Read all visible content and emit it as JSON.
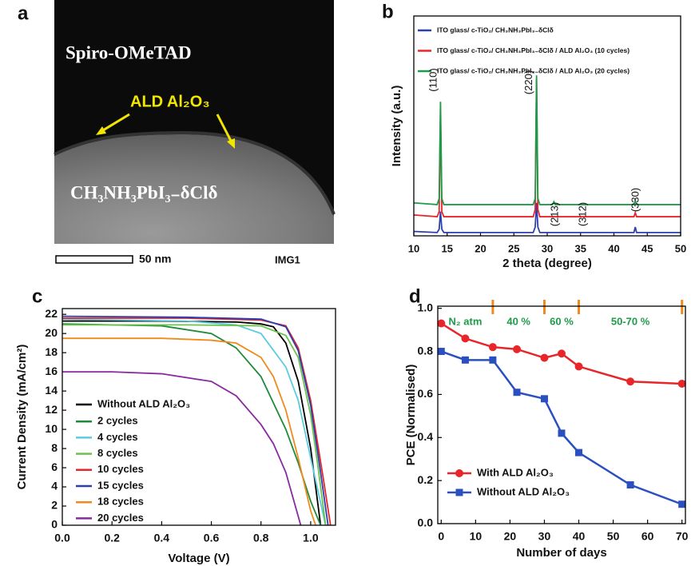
{
  "chart_data": [
    {
      "type": "image",
      "panel_label": "a",
      "top_label": "Spiro-OMeTAD",
      "arrow_label": "ALD Al₂O₃",
      "bottom_label": "CH₃NH₃PbI₃₋δClδ",
      "scale_bar": "50 nm",
      "image_id": "IMG1"
    },
    {
      "type": "line",
      "panel_label": "b",
      "xlabel": "2 theta (degree)",
      "ylabel": "Intensity (a.u.)",
      "xlim": [
        10,
        50
      ],
      "ylim": [
        0,
        100
      ],
      "xticks": [
        10,
        15,
        20,
        25,
        30,
        35,
        40,
        45,
        50
      ],
      "x": [
        10,
        13.5,
        13.8,
        14.0,
        14.2,
        14.5,
        20,
        27.9,
        28.2,
        28.4,
        28.6,
        28.9,
        30.8,
        31.0,
        31.2,
        35,
        43.0,
        43.2,
        43.4,
        50
      ],
      "series": [
        {
          "name": "ITO glass/ c-TiO₂/ CH₃NH₃PbI₃₋δClδ",
          "color": "#2a3fb0",
          "values": [
            2,
            1.5,
            3,
            11,
            3,
            1.5,
            1.5,
            1.5,
            4,
            15,
            4,
            1.5,
            1.5,
            1.5,
            1.5,
            1.5,
            1.5,
            4,
            1.5,
            1.5
          ]
        },
        {
          "name": "ITO glass/ c-TiO₂/ CH₃NH₃PbI₃₋δClδ / ALD Al₂O₃ (10 cycles)",
          "color": "#e8262a",
          "values": [
            9.5,
            8.7,
            11,
            56,
            11,
            8.7,
            8.7,
            8.7,
            12,
            71,
            12,
            8.7,
            8.7,
            8.7,
            8.7,
            8.7,
            8.7,
            10.5,
            8.7,
            8.7
          ]
        },
        {
          "name": "ITO glass/ c-TiO₂/ CH₃NH₃PbI₃₋δClδ / ALD Al₂O₃ (20 cycles)",
          "color": "#1f9a4a",
          "values": [
            15,
            14.2,
            17,
            61,
            17,
            14.2,
            14.2,
            14.2,
            17,
            73,
            17,
            14.2,
            14.2,
            15.5,
            14.2,
            14.2,
            14.2,
            16,
            14.2,
            14.2
          ]
        }
      ],
      "annotations": [
        {
          "text": "(110)",
          "x": 13.0
        },
        {
          "text": "(220)",
          "x": 27.3
        },
        {
          "text": "(213)",
          "x": 31.2
        },
        {
          "text": "(312)",
          "x": 35.4
        },
        {
          "text": "(330)",
          "x": 43.3
        }
      ]
    },
    {
      "type": "line",
      "panel_label": "c",
      "xlabel": "Voltage (V)",
      "ylabel": "Current Density (mA/cm²)",
      "xlim": [
        0,
        1.1
      ],
      "ylim": [
        0,
        22.6
      ],
      "xticks": [
        {
          "value": 0,
          "label": "0.0"
        },
        0.2,
        0.4,
        0.6,
        0.8,
        {
          "value": 1,
          "label": "1.0"
        }
      ],
      "yticks": [
        0,
        2,
        4,
        6,
        8,
        10,
        12,
        14,
        16,
        18,
        20,
        22
      ],
      "series": [
        {
          "name": "Without ALD Al₂O₃",
          "color": "#000000",
          "x": [
            0,
            0.4,
            0.7,
            0.8,
            0.85,
            0.9,
            0.95,
            1.0,
            1.04
          ],
          "values": [
            21.3,
            21.3,
            21.2,
            21.0,
            20.7,
            19,
            15,
            8,
            0
          ]
        },
        {
          "name": "2 cycles",
          "color": "#1f8a3a",
          "x": [
            0,
            0.4,
            0.6,
            0.7,
            0.8,
            0.9,
            0.95,
            1.0,
            1.04
          ],
          "values": [
            21.0,
            20.8,
            20.0,
            18.5,
            15.5,
            10,
            6.5,
            2.5,
            0
          ]
        },
        {
          "name": "4 cycles",
          "color": "#5bcbe0",
          "x": [
            0,
            0.5,
            0.7,
            0.8,
            0.9,
            0.95,
            1.0,
            1.06
          ],
          "values": [
            21.5,
            21.3,
            20.9,
            20,
            16.5,
            13,
            7,
            0
          ]
        },
        {
          "name": "8 cycles",
          "color": "#6cc24a",
          "x": [
            0,
            0.5,
            0.8,
            0.9,
            0.95,
            1.0,
            1.03,
            1.06
          ],
          "values": [
            20.9,
            20.9,
            20.8,
            19.8,
            17.5,
            11.5,
            6,
            0
          ]
        },
        {
          "name": "10 cycles",
          "color": "#e8262a",
          "x": [
            0,
            0.5,
            0.8,
            0.9,
            0.95,
            1.0,
            1.05,
            1.08
          ],
          "values": [
            21.6,
            21.6,
            21.4,
            20.8,
            18.5,
            13,
            5,
            0
          ]
        },
        {
          "name": "15 cycles",
          "color": "#2a3fb0",
          "x": [
            0,
            0.5,
            0.8,
            0.9,
            0.95,
            1.0,
            1.04,
            1.07
          ],
          "values": [
            21.8,
            21.7,
            21.5,
            20.7,
            18.2,
            12.5,
            5.5,
            0
          ]
        },
        {
          "name": "18 cycles",
          "color": "#f08a1c",
          "x": [
            0,
            0.4,
            0.6,
            0.7,
            0.8,
            0.85,
            0.9,
            0.95,
            1.0,
            1.02
          ],
          "values": [
            19.5,
            19.5,
            19.3,
            19.0,
            17.5,
            15.5,
            12,
            7,
            1.5,
            0
          ]
        },
        {
          "name": "20 cycles",
          "color": "#8a2aa0",
          "x": [
            0,
            0.2,
            0.4,
            0.6,
            0.7,
            0.8,
            0.85,
            0.9,
            0.96
          ],
          "values": [
            16,
            16,
            15.8,
            15,
            13.5,
            10.5,
            8.5,
            5.5,
            0
          ]
        }
      ]
    },
    {
      "type": "line",
      "panel_label": "d",
      "xlabel": "Number of days",
      "ylabel": "PCE (Normalised)",
      "xlim": [
        -1,
        71
      ],
      "ylim": [
        0,
        1.01
      ],
      "xticks": [
        0,
        10,
        20,
        30,
        40,
        50,
        60,
        70
      ],
      "yticks": [
        {
          "value": 0,
          "label": "0.0"
        },
        0.2,
        0.4,
        0.6,
        0.8,
        {
          "value": 1,
          "label": "1.0"
        }
      ],
      "x": [
        0,
        7,
        15,
        22,
        30,
        35,
        40,
        55,
        70
      ],
      "series": [
        {
          "name": "With ALD Al₂O₃",
          "color": "#e8262a",
          "marker": "circle",
          "values": [
            0.93,
            0.86,
            0.82,
            0.81,
            0.77,
            0.79,
            0.73,
            0.66,
            0.65
          ]
        },
        {
          "name": "Without ALD Al₂O₃",
          "color": "#2a50c0",
          "marker": "square",
          "values": [
            0.8,
            0.76,
            0.76,
            0.61,
            0.58,
            0.42,
            0.33,
            0.18,
            0.09
          ]
        }
      ],
      "phase_labels": [
        "N₂ atm",
        "40 %",
        "60 %",
        "50-70 %"
      ],
      "phase_markers": [
        15,
        30,
        40,
        70
      ],
      "phase_color": "#f08a1c",
      "phase_label_color": "#1f9a4a"
    }
  ]
}
